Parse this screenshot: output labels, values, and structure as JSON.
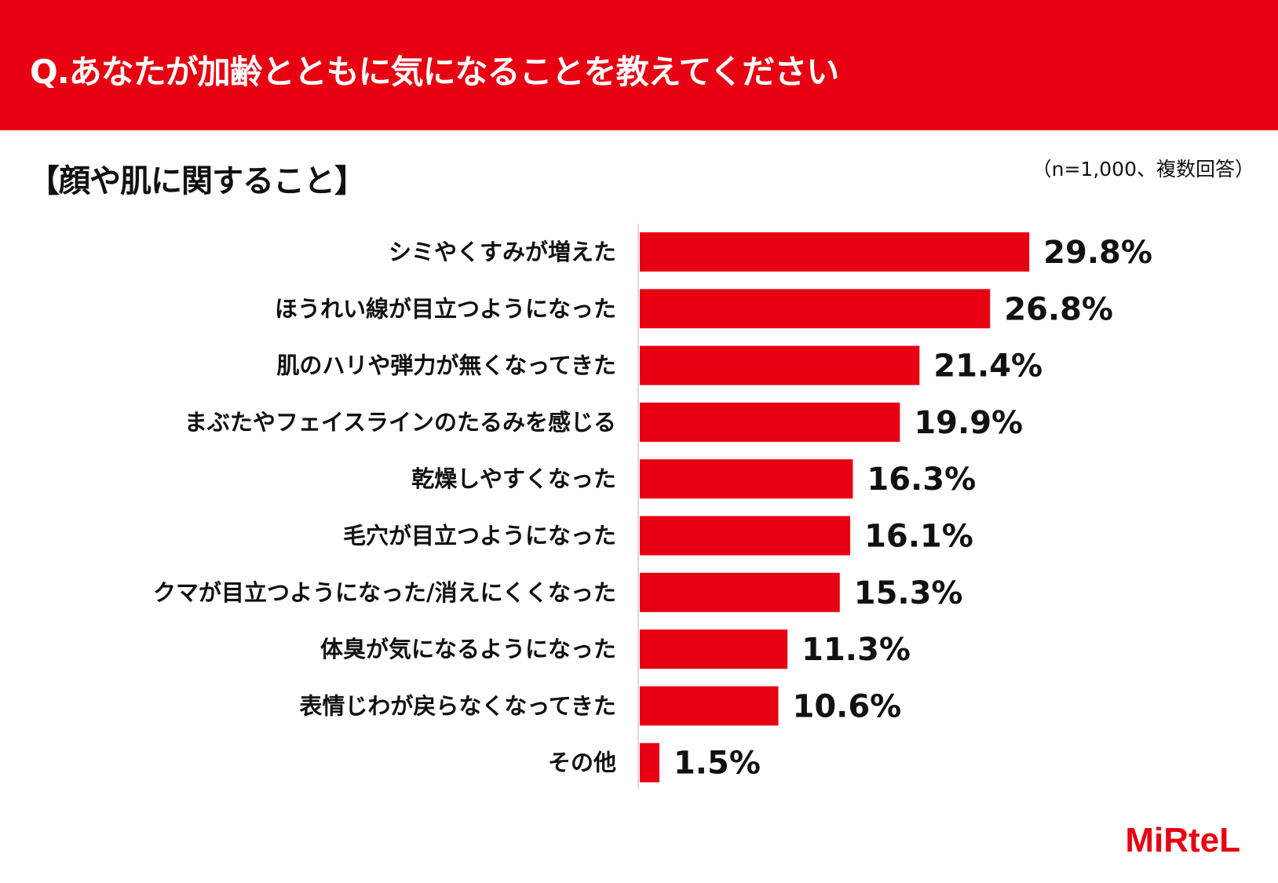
{
  "header": {
    "title": "Q.あなたが加齢とともに気になることを教えてください"
  },
  "section": {
    "title": "【顔や肌に関すること】"
  },
  "note": "（n=1,000、複数回答）",
  "brand": {
    "logo_text": "MiRteL",
    "color": "#e60012"
  },
  "chart_data": {
    "type": "bar",
    "orientation": "horizontal",
    "categories": [
      "シミやくすみが増えた",
      "ほうれい線が目立つようになった",
      "肌のハリや弾力が無くなってきた",
      "まぶたやフェイスラインのたるみを感じる",
      "乾燥しやすくなった",
      "毛穴が目立つようになった",
      "クマが目立つようになった/消えにくくなった",
      "体臭が気になるようになった",
      "表情じわが戻らなくなってきた",
      "その他"
    ],
    "values": [
      29.8,
      26.8,
      21.4,
      19.9,
      16.3,
      16.1,
      15.3,
      11.3,
      10.6,
      1.5
    ],
    "value_labels": [
      "29.8%",
      "26.8%",
      "21.4%",
      "19.9%",
      "16.3%",
      "16.1%",
      "15.3%",
      "11.3%",
      "10.6%",
      "1.5%"
    ],
    "bar_color": "#e60012",
    "grid": false
  }
}
